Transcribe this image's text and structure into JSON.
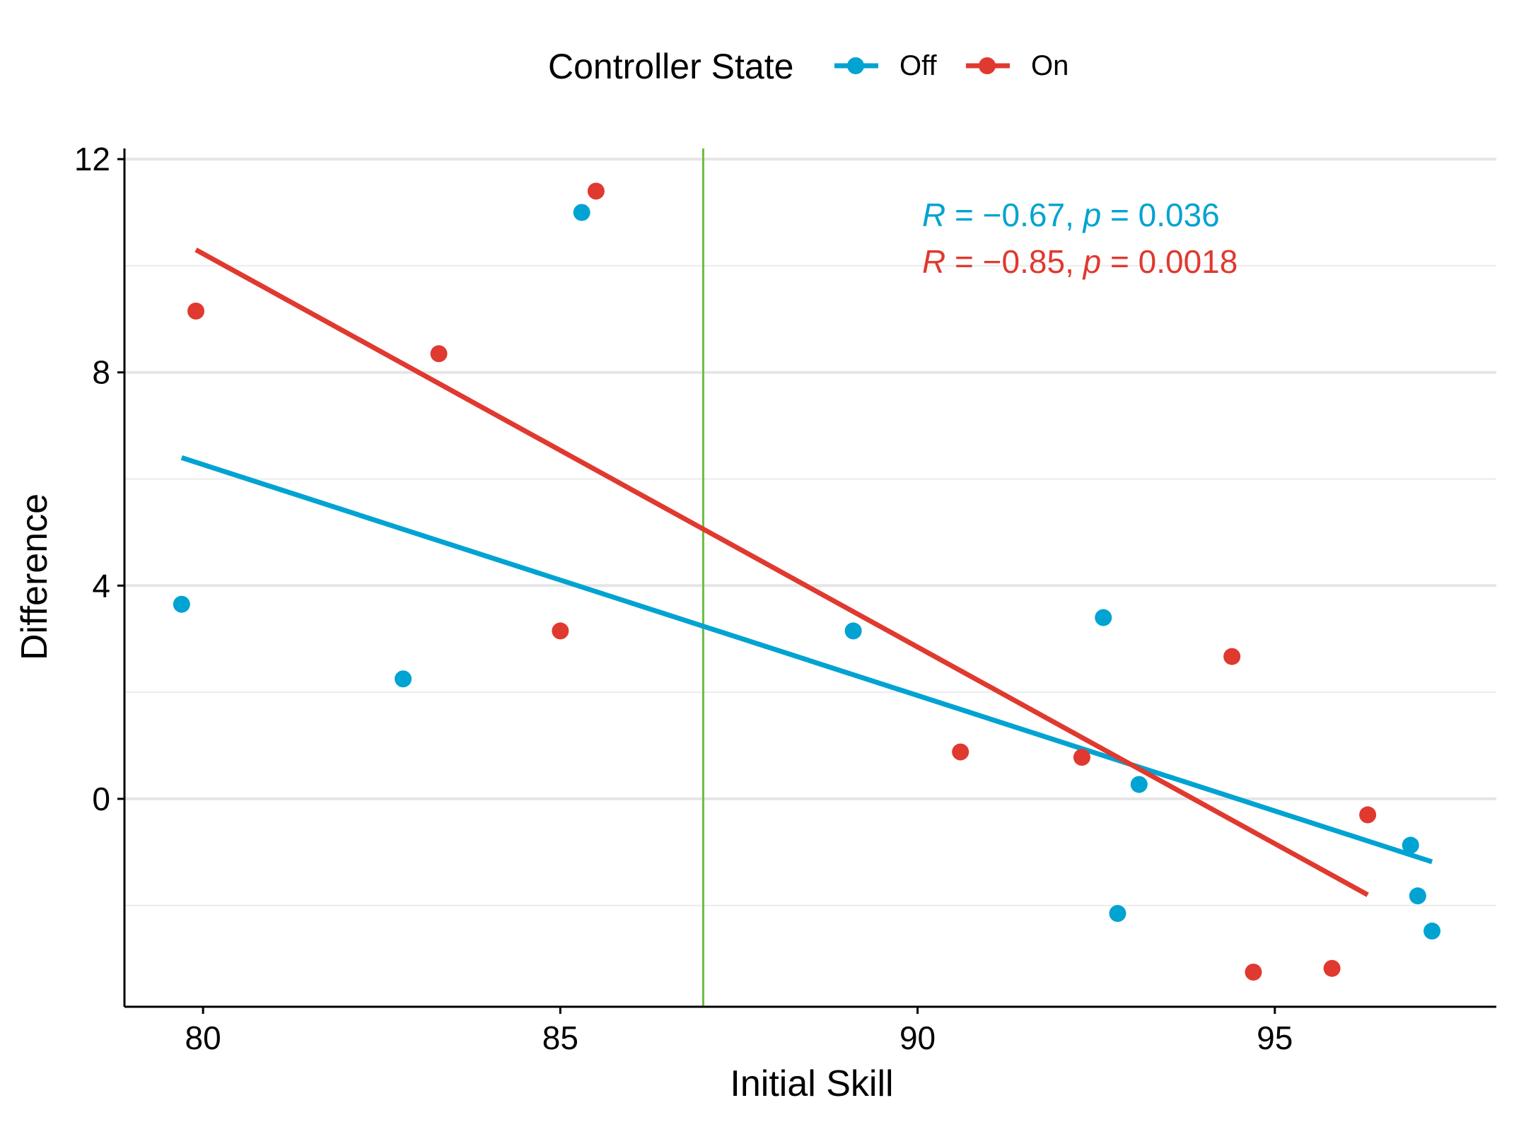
{
  "chart_data": {
    "type": "scatter",
    "xlabel": "Initial Skill",
    "ylabel": "Difference",
    "xlim": [
      78.9,
      98.1
    ],
    "ylim": [
      -3.9,
      12.2
    ],
    "x_ticks": [
      80,
      85,
      90,
      95
    ],
    "x_tick_labels": [
      "80",
      "85",
      "90",
      "95"
    ],
    "y_ticks": [
      0,
      4,
      8,
      12
    ],
    "y_tick_labels": [
      "0",
      "4",
      "8",
      "12"
    ],
    "y_minor_gridlines": [
      -2,
      2,
      6,
      10
    ],
    "grid": "horizontal",
    "legend": {
      "title": "Controller State",
      "placement": "top"
    },
    "vertical_reference_line": {
      "x": 87.0,
      "color": "#6abf40"
    },
    "series": [
      {
        "name": "Off",
        "color": "#00a3d1",
        "points": [
          {
            "x": 79.7,
            "y": 3.65
          },
          {
            "x": 82.8,
            "y": 2.25
          },
          {
            "x": 85.3,
            "y": 11.0
          },
          {
            "x": 89.1,
            "y": 3.15
          },
          {
            "x": 92.6,
            "y": 3.4
          },
          {
            "x": 92.8,
            "y": -2.15
          },
          {
            "x": 93.1,
            "y": 0.27
          },
          {
            "x": 96.9,
            "y": -0.87
          },
          {
            "x": 97.0,
            "y": -1.82
          },
          {
            "x": 97.2,
            "y": -2.48
          }
        ],
        "fit": {
          "x1": 79.7,
          "y1": 6.4,
          "x2": 97.2,
          "y2": -1.18
        },
        "stats_label": {
          "R": "R",
          "r_eq": " = ",
          "r_val": "−0.67, ",
          "p": "p",
          "p_eq": " = ",
          "p_val": "0.036"
        }
      },
      {
        "name": "On",
        "color": "#e0392f",
        "points": [
          {
            "x": 79.9,
            "y": 9.15
          },
          {
            "x": 83.3,
            "y": 8.35
          },
          {
            "x": 85.0,
            "y": 3.15
          },
          {
            "x": 85.5,
            "y": 11.4
          },
          {
            "x": 90.6,
            "y": 0.88
          },
          {
            "x": 92.3,
            "y": 0.78
          },
          {
            "x": 94.4,
            "y": 2.67
          },
          {
            "x": 94.7,
            "y": -3.25
          },
          {
            "x": 95.8,
            "y": -3.18
          },
          {
            "x": 96.3,
            "y": -0.3
          }
        ],
        "fit": {
          "x1": 79.9,
          "y1": 10.3,
          "x2": 96.3,
          "y2": -1.8
        },
        "stats_label": {
          "R": "R",
          "r_eq": " = ",
          "r_val": "−0.85, ",
          "p": "p",
          "p_eq": " = ",
          "p_val": "0.0018"
        }
      }
    ]
  }
}
